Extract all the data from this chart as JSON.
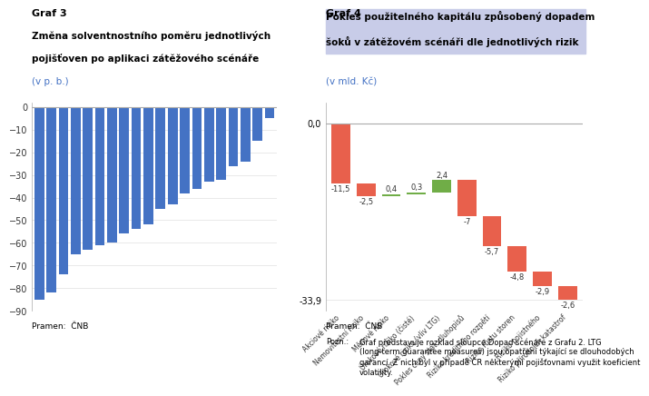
{
  "graf3": {
    "title_bold": "Graf 3",
    "title_line2": "Změna solventnostního poměru jednotlivých",
    "title_line3": "pojišťoven po aplikaci zátěžového scénáře",
    "title_line4": "(v p. b.)",
    "values": [
      -85,
      -82,
      -74,
      -65,
      -63,
      -61,
      -60,
      -56,
      -54,
      -52,
      -45,
      -43,
      -38,
      -36,
      -33,
      -32,
      -26,
      -24,
      -15,
      -5
    ],
    "bar_color": "#4472C4",
    "ylim": [
      -90,
      2
    ],
    "yticks": [
      0,
      -10,
      -20,
      -30,
      -40,
      -50,
      -60,
      -70,
      -80,
      -90
    ],
    "source": "Pramen:  ČNB"
  },
  "graf4": {
    "title_bold": "Graf 4",
    "title_line2": "Pokles použitelného kapitálu způsobený dopadem",
    "title_line3": "šoků v zátěžovém scénáři dle jednotlivých rizik",
    "title_line4": "(v mld. Kč)",
    "categories": [
      "Akciové riziko",
      "Nemovitostní riziko",
      "Měnové riziko",
      "Úrokové riziko (čisté)",
      "Úrokové riziko (vliv LTG)",
      "Pokles ceny stát. dluhopisů",
      "Riziko kreditního rozpětí",
      "Riziko růstu storen",
      "Riziko pojistného",
      "Riziko přírodních katastrof"
    ],
    "values": [
      -11.5,
      -2.5,
      0.4,
      0.3,
      2.4,
      -7.0,
      -5.7,
      -4.8,
      -2.9,
      -2.6
    ],
    "total": -33.9,
    "bar_colors": [
      "#E8604C",
      "#E8604C",
      "#70AD47",
      "#70AD47",
      "#70AD47",
      "#E8604C",
      "#E8604C",
      "#E8604C",
      "#E8604C",
      "#E8604C"
    ],
    "ylim": [
      -36,
      4
    ],
    "source": "Pramen:  ČNB",
    "note_title": "Pozn.:",
    "note_text": "Graf představuje rozklad sloupce Dopad scénáře z Grafu 2. LTG\n(long-term guarantee measures) jsou opatření týkající se dlouhodobých\ngarancí. Z nich byl v případě ČR některými pojišťovnami využit koeficient\nvolatility.",
    "title_highlight": "#C8CCE8"
  }
}
